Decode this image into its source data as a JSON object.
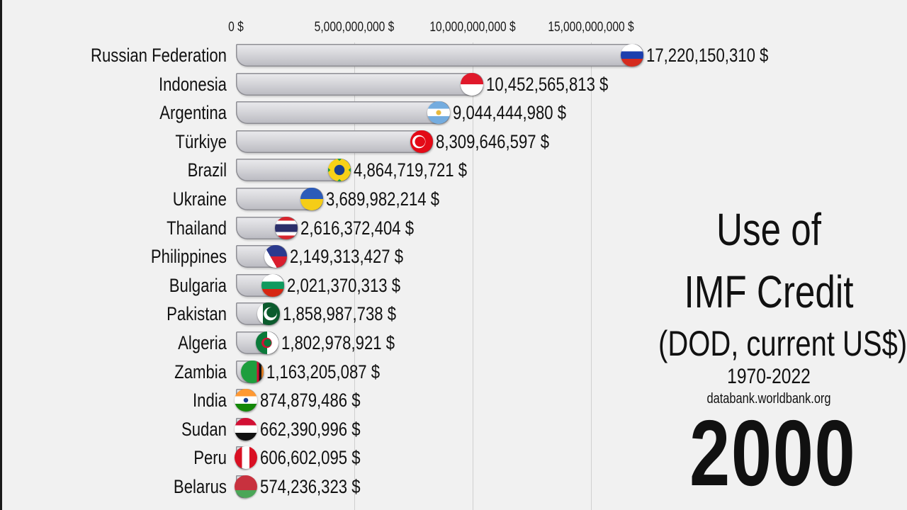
{
  "chart_data": {
    "type": "bar",
    "orientation": "horizontal",
    "title": "Use of IMF Credit (DOD, current US$)",
    "subtitle": "1970-2022",
    "source": "databank.worldbank.org",
    "year": "2000",
    "xlabel": "",
    "ylabel": "",
    "x_ticks": [
      "0 $",
      "5,000,000,000 $",
      "10,000,000,000 $",
      "15,000,000,000 $"
    ],
    "x_tick_values": [
      0,
      5000000000,
      10000000000,
      15000000000
    ],
    "grid": true,
    "legend": null,
    "categories": [
      "Russian Federation",
      "Indonesia",
      "Argentina",
      "Türkiye",
      "Brazil",
      "Ukraine",
      "Thailand",
      "Philippines",
      "Bulgaria",
      "Pakistan",
      "Algeria",
      "Zambia",
      "India",
      "Sudan",
      "Peru",
      "Belarus"
    ],
    "values": [
      17220150310,
      10452565813,
      9044444980,
      8309646597,
      4864719721,
      3689982214,
      2616372404,
      2149313427,
      2021370313,
      1858987738,
      1802978921,
      1163205087,
      874879486,
      662390996,
      606602095,
      574236323
    ],
    "value_labels": [
      "17,220,150,310 $",
      "10,452,565,813 $",
      "9,044,444,980 $",
      "8,309,646,597 $",
      "4,864,719,721 $",
      "3,689,982,214 $",
      "2,616,372,404 $",
      "2,149,313,427 $",
      "2,021,370,313 $",
      "1,858,987,738 $",
      "1,802,978,921 $",
      "1,163,205,087 $",
      "874,879,486 $",
      "662,390,996 $",
      "606,602,095 $",
      "574,236,323 $"
    ],
    "flags": [
      "russia-flag",
      "indonesia-flag",
      "argentina-flag",
      "turkey-flag",
      "brazil-flag",
      "ukraine-flag",
      "thailand-flag",
      "philippines-flag",
      "bulgaria-flag",
      "pakistan-flag",
      "algeria-flag",
      "zambia-flag",
      "india-flag",
      "sudan-flag",
      "peru-flag",
      "belarus-flag"
    ]
  },
  "axis": {
    "ticks": [
      "0 $",
      "5,000,000,000 $",
      "10,000,000,000 $",
      "15,000,000,000 $"
    ]
  },
  "title": {
    "line1": "Use of",
    "line2": "IMF Credit",
    "line3": "(DOD, current US$)",
    "range": "1970-2022",
    "source": "databank.worldbank.org",
    "year": "2000"
  },
  "colors": {
    "background": "#f1f1f1",
    "bar_light": "#ebebee",
    "bar_dark": "#b9b9c0",
    "text": "#111111",
    "grid": "#cfcfcf"
  }
}
